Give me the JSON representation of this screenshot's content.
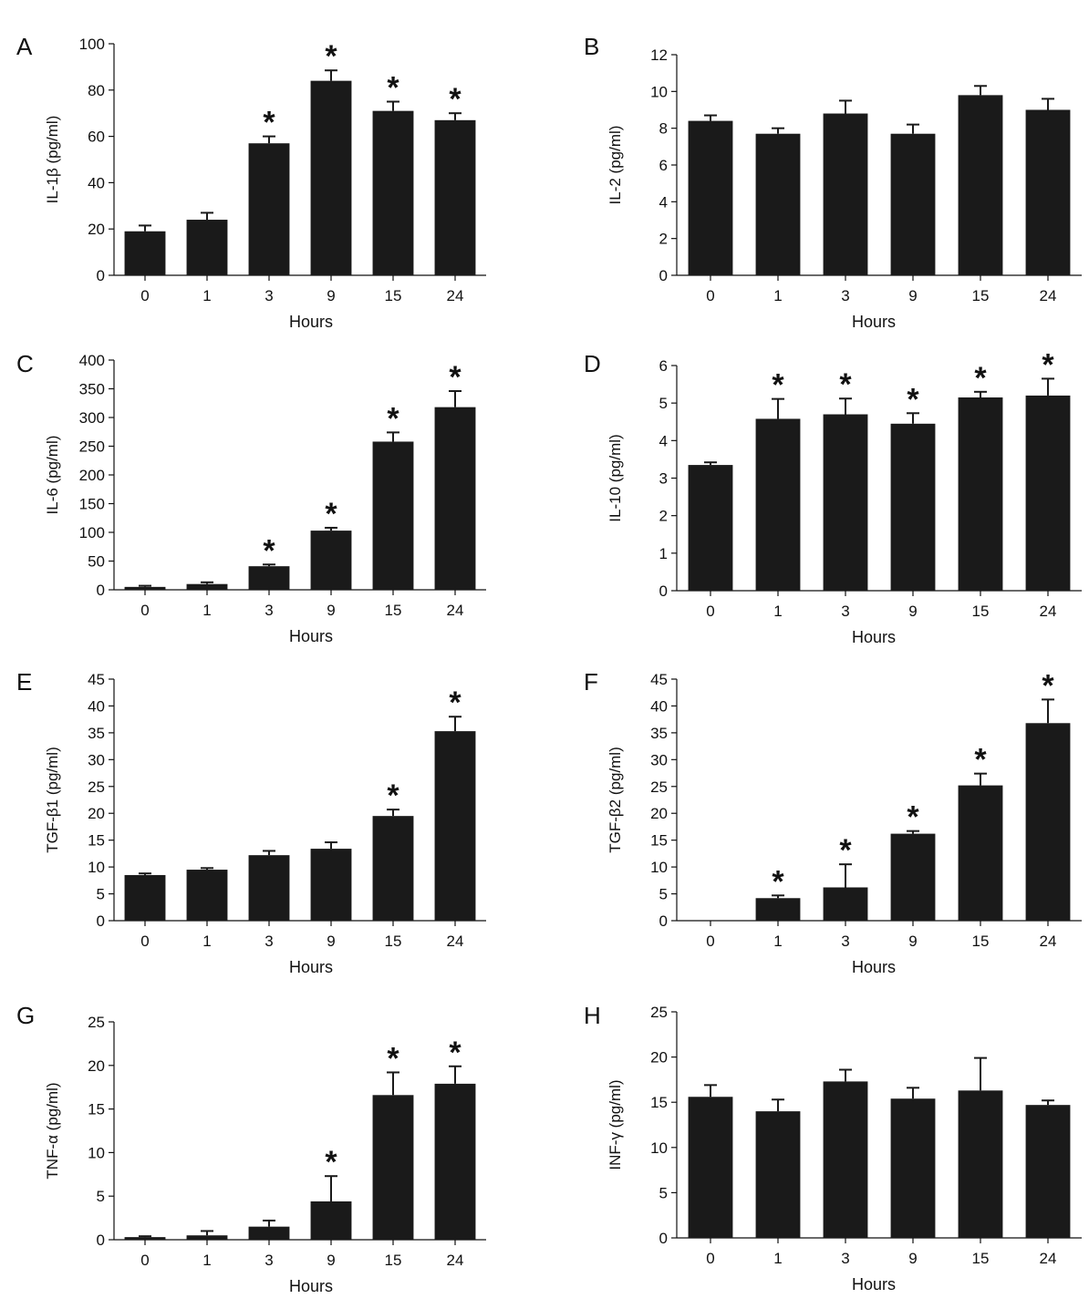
{
  "chart_data": [
    {
      "type": "bar",
      "panel": "A",
      "ylabel": "IL-1β (pg/ml)",
      "xlabel": "Hours",
      "categories": [
        "0",
        "1",
        "3",
        "9",
        "15",
        "24"
      ],
      "values": [
        19,
        24,
        57,
        84,
        71,
        67
      ],
      "errors": [
        2.5,
        3,
        3,
        4.5,
        4,
        3
      ],
      "significant": [
        false,
        false,
        true,
        true,
        true,
        true
      ],
      "ylim": [
        0,
        100
      ],
      "yticks": [
        0,
        20,
        40,
        60,
        80,
        100
      ]
    },
    {
      "type": "bar",
      "panel": "B",
      "ylabel": "IL-2 (pg/ml)",
      "xlabel": "Hours",
      "categories": [
        "0",
        "1",
        "3",
        "9",
        "15",
        "24"
      ],
      "values": [
        8.4,
        7.7,
        8.8,
        7.7,
        9.8,
        9.0
      ],
      "errors": [
        0.3,
        0.3,
        0.7,
        0.5,
        0.5,
        0.6
      ],
      "significant": [
        false,
        false,
        false,
        false,
        false,
        false
      ],
      "ylim": [
        0,
        12
      ],
      "yticks": [
        0,
        2,
        4,
        6,
        8,
        10,
        12
      ]
    },
    {
      "type": "bar",
      "panel": "C",
      "ylabel": "IL-6 (pg/ml)",
      "xlabel": "Hours",
      "categories": [
        "0",
        "1",
        "3",
        "9",
        "15",
        "24"
      ],
      "values": [
        5,
        10,
        41,
        103,
        258,
        318
      ],
      "errors": [
        2,
        3,
        3,
        5,
        16,
        28
      ],
      "significant": [
        false,
        false,
        true,
        true,
        true,
        true
      ],
      "ylim": [
        0,
        400
      ],
      "yticks": [
        0,
        50,
        100,
        150,
        200,
        250,
        300,
        350,
        400
      ]
    },
    {
      "type": "bar",
      "panel": "D",
      "ylabel": "IL-10 (pg/ml)",
      "xlabel": "Hours",
      "categories": [
        "0",
        "1",
        "3",
        "9",
        "15",
        "24"
      ],
      "values": [
        3.35,
        4.58,
        4.7,
        4.45,
        5.15,
        5.2
      ],
      "errors": [
        0.07,
        0.53,
        0.42,
        0.28,
        0.15,
        0.45
      ],
      "significant": [
        false,
        true,
        true,
        true,
        true,
        true
      ],
      "ylim": [
        0,
        6
      ],
      "yticks": [
        0,
        1,
        2,
        3,
        4,
        5,
        6
      ]
    },
    {
      "type": "bar",
      "panel": "E",
      "ylabel": "TGF-β1 (pg/ml)",
      "xlabel": "Hours",
      "categories": [
        "0",
        "1",
        "3",
        "9",
        "15",
        "24"
      ],
      "values": [
        8.5,
        9.5,
        12.2,
        13.4,
        19.5,
        35.3
      ],
      "errors": [
        0.3,
        0.3,
        0.8,
        1.2,
        1.2,
        2.7
      ],
      "significant": [
        false,
        false,
        false,
        false,
        true,
        true
      ],
      "ylim": [
        0,
        45
      ],
      "yticks": [
        0,
        5,
        10,
        15,
        20,
        25,
        30,
        35,
        40,
        45
      ]
    },
    {
      "type": "bar",
      "panel": "F",
      "ylabel": "TGF-β2 (pg/ml)",
      "xlabel": "Hours",
      "categories": [
        "0",
        "1",
        "3",
        "9",
        "15",
        "24"
      ],
      "values": [
        0,
        4.2,
        6.2,
        16.2,
        25.2,
        36.8
      ],
      "errors": [
        0,
        0.5,
        4.3,
        0.5,
        2.2,
        4.4
      ],
      "significant": [
        false,
        true,
        true,
        true,
        true,
        true
      ],
      "ylim": [
        0,
        45
      ],
      "yticks": [
        0,
        5,
        10,
        15,
        20,
        25,
        30,
        35,
        40,
        45
      ]
    },
    {
      "type": "bar",
      "panel": "G",
      "ylabel": "TNF-α (pg/ml)",
      "xlabel": "Hours",
      "categories": [
        "0",
        "1",
        "3",
        "9",
        "15",
        "24"
      ],
      "values": [
        0.3,
        0.5,
        1.5,
        4.4,
        16.6,
        17.9
      ],
      "errors": [
        0.1,
        0.5,
        0.7,
        2.9,
        2.6,
        2.0
      ],
      "significant": [
        false,
        false,
        false,
        true,
        true,
        true
      ],
      "ylim": [
        0,
        25
      ],
      "yticks": [
        0,
        5,
        10,
        15,
        20,
        25
      ]
    },
    {
      "type": "bar",
      "panel": "H",
      "ylabel": "INF-γ (pg/ml)",
      "xlabel": "Hours",
      "categories": [
        "0",
        "1",
        "3",
        "9",
        "15",
        "24"
      ],
      "values": [
        15.6,
        14.0,
        17.3,
        15.4,
        16.3,
        14.7
      ],
      "errors": [
        1.3,
        1.3,
        1.3,
        1.2,
        3.6,
        0.5
      ],
      "significant": [
        false,
        false,
        false,
        false,
        false,
        false
      ],
      "ylim": [
        0,
        25
      ],
      "yticks": [
        0,
        5,
        10,
        15,
        20,
        25
      ]
    }
  ],
  "marker": "*"
}
